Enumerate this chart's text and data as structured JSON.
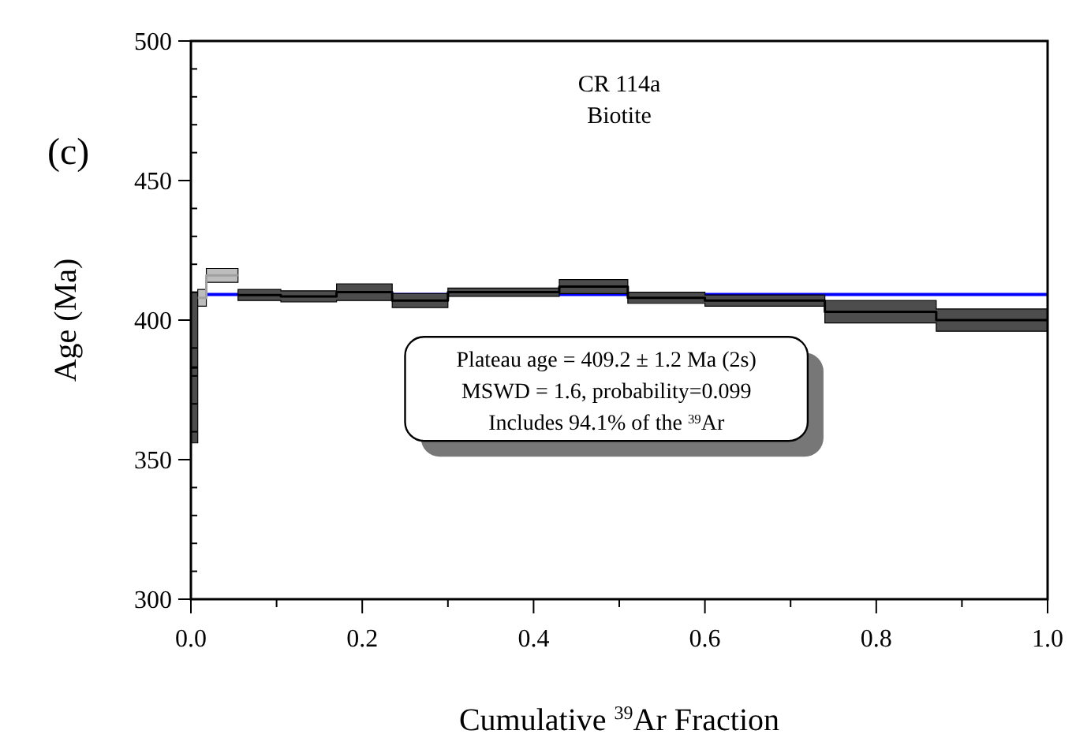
{
  "chart_data": {
    "type": "step",
    "xlabel": "Cumulative $^{39}$Ar Fraction",
    "ylabel": "Age (Ma)",
    "annotations": [
      "(c)",
      "CR 114a",
      "Biotite",
      "Plateau age = 409.2 ± 1.2 Ma  (2s)",
      "MSWD = 1.6, probability=0.099",
      "Includes 94.1% of the $^{39}$Ar"
    ],
    "xlim": [
      0,
      1
    ],
    "ylim": [
      300,
      500
    ],
    "xticks": [
      {
        "value": 0,
        "label": "0.0"
      },
      {
        "value": 0.1,
        "label": null
      },
      {
        "value": 0.2,
        "label": "0.2"
      },
      {
        "value": 0.3,
        "label": null
      },
      {
        "value": 0.4,
        "label": "0.4"
      },
      {
        "value": 0.5,
        "label": null
      },
      {
        "value": 0.6,
        "label": "0.6"
      },
      {
        "value": 0.7,
        "label": null
      },
      {
        "value": 0.8,
        "label": "0.8"
      },
      {
        "value": 0.9,
        "label": null
      },
      {
        "value": 1,
        "label": "1.0"
      }
    ],
    "yticks": [
      300,
      {
        "value": 310,
        "label": null
      },
      {
        "value": 320,
        "label": null
      },
      {
        "value": 330,
        "label": null
      },
      {
        "value": 340,
        "label": null
      },
      350,
      {
        "value": 360,
        "label": null
      },
      {
        "value": 370,
        "label": null
      },
      {
        "value": 380,
        "label": null
      },
      {
        "value": 390,
        "label": null
      },
      400,
      {
        "value": 410,
        "label": null
      },
      {
        "value": 420,
        "label": null
      },
      {
        "value": 430,
        "label": null
      },
      {
        "value": 440,
        "label": null
      },
      450,
      {
        "value": 460,
        "label": null
      },
      {
        "value": 470,
        "label": null
      },
      {
        "value": 480,
        "label": null
      },
      {
        "value": 490,
        "label": null
      },
      500
    ],
    "grid": false,
    "series": [
      {
        "color": "#000000",
        "x": [
          0,
          0.008
        ],
        "values": [
          383,
          383
        ],
        "lower": [
          356,
          356
        ],
        "upper": [
          410,
          410
        ]
      },
      {
        "color": "#a0a0a0",
        "x": [
          0.008,
          0.018,
          0.055
        ],
        "values": [
          408,
          416,
          416
        ],
        "lower": [
          405,
          413.5,
          413.5
        ],
        "upper": [
          411,
          418.5,
          418.5
        ]
      },
      {
        "color": "#000000",
        "x": [
          0.055,
          0.105,
          0.17,
          0.235,
          0.3,
          0.43,
          0.51,
          0.6,
          0.74,
          0.87,
          1.0
        ],
        "values": [
          409,
          408.5,
          410,
          407,
          410,
          412,
          408,
          407,
          403,
          400,
          400
        ],
        "lower": [
          407,
          406.5,
          407,
          404.5,
          408.5,
          409.5,
          406,
          405,
          399,
          396,
          396
        ],
        "upper": [
          411,
          410.5,
          413,
          409.5,
          411.5,
          414.5,
          410,
          409,
          407,
          404,
          404
        ]
      }
    ],
    "ref_lines": [
      {
        "axis": "y",
        "value": 409.2,
        "color": "#0000ff"
      }
    ]
  }
}
